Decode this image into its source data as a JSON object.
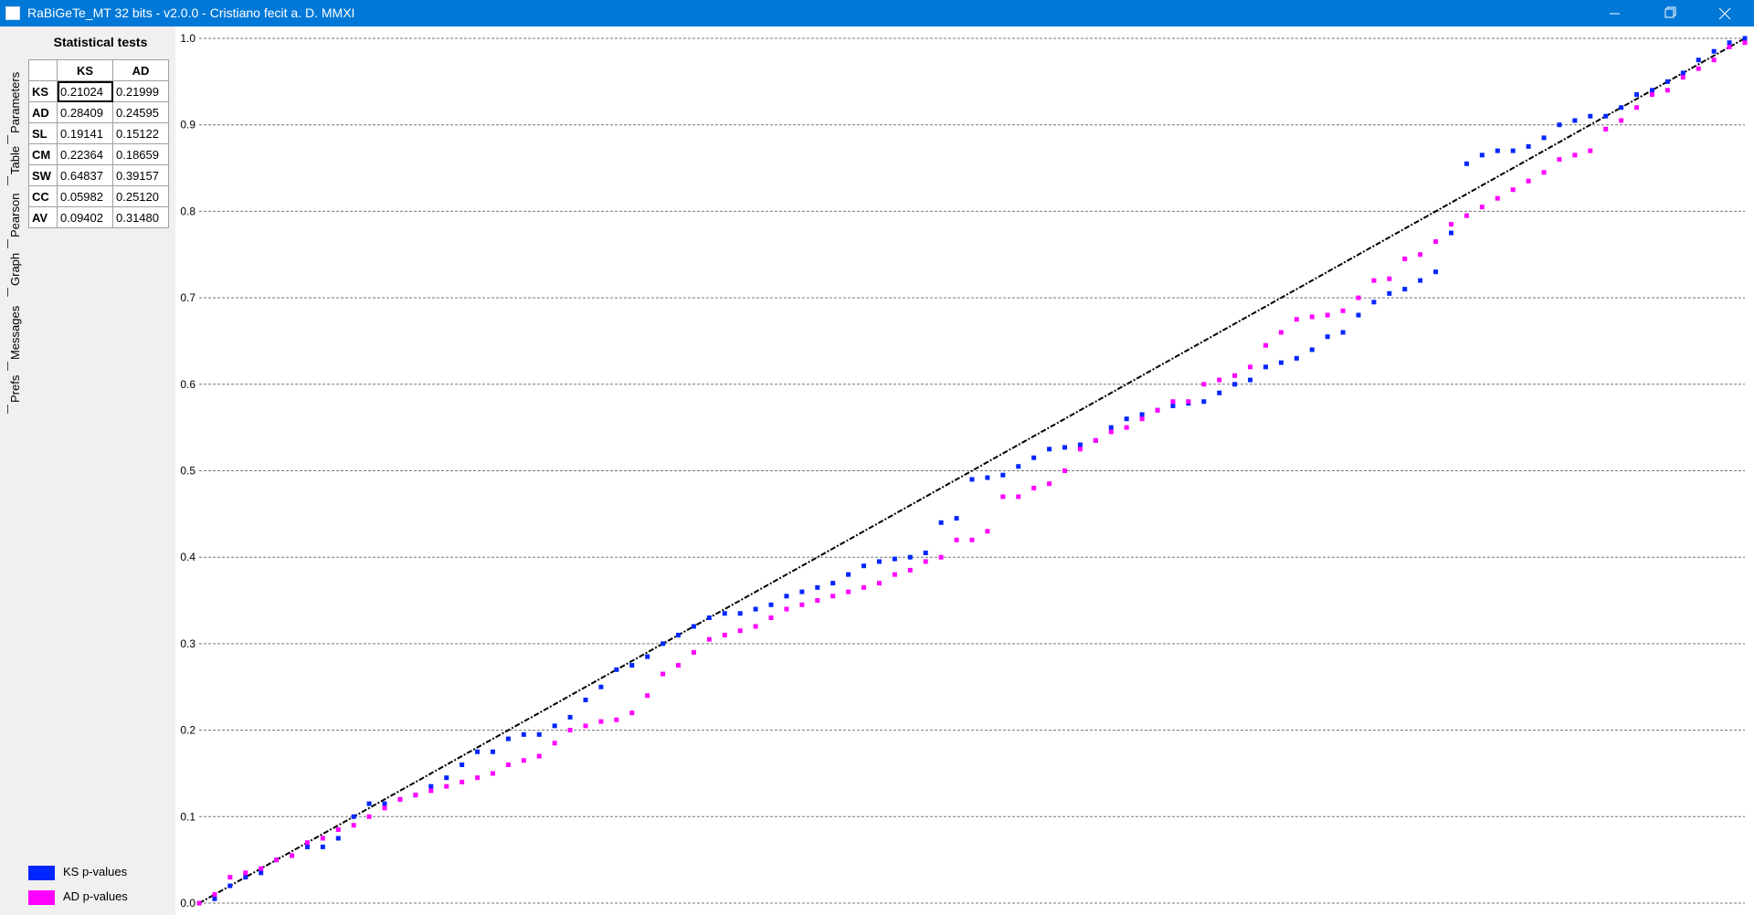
{
  "window": {
    "title": "RaBiGeTe_MT 32 bits - v2.0.0 - Cristiano fecit a. D. MMXI"
  },
  "tabs": [
    "Parameters",
    "Table",
    "Pearson",
    "Graph",
    "Messages",
    "Prefs"
  ],
  "stats": {
    "title": "Statistical tests",
    "columns": [
      "KS",
      "AD"
    ],
    "rows": [
      {
        "label": "KS",
        "values": [
          "0.21024",
          "0.21999"
        ]
      },
      {
        "label": "AD",
        "values": [
          "0.28409",
          "0.24595"
        ]
      },
      {
        "label": "SL",
        "values": [
          "0.19141",
          "0.15122"
        ]
      },
      {
        "label": "CM",
        "values": [
          "0.22364",
          "0.18659"
        ]
      },
      {
        "label": "SW",
        "values": [
          "0.64837",
          "0.39157"
        ]
      },
      {
        "label": "CC",
        "values": [
          "0.05982",
          "0.25120"
        ]
      },
      {
        "label": "AV",
        "values": [
          "0.09402",
          "0.31480"
        ]
      }
    ]
  },
  "chart_data": {
    "type": "scatter",
    "ylim": [
      0,
      1
    ],
    "yticks": [
      {
        "value": 0,
        "label": "0.0"
      },
      {
        "value": 0.1,
        "label": "0.1"
      },
      {
        "value": 0.2,
        "label": "0.2"
      },
      {
        "value": 0.3,
        "label": "0.3"
      },
      {
        "value": 0.4,
        "label": "0.4"
      },
      {
        "value": 0.5,
        "label": "0.5"
      },
      {
        "value": 0.6,
        "label": "0.6"
      },
      {
        "value": 0.7,
        "label": "0.7"
      },
      {
        "value": 0.8,
        "label": "0.8"
      },
      {
        "value": 0.9,
        "label": "0.9"
      },
      {
        "value": 1,
        "label": "1.0"
      }
    ],
    "grid": true,
    "series": [
      {
        "name": "KS p-values",
        "color": "#0026ff",
        "values": [
          0.0,
          0.005,
          0.02,
          0.03,
          0.035,
          0.05,
          0.055,
          0.065,
          0.065,
          0.075,
          0.1,
          0.115,
          0.115,
          0.12,
          0.125,
          0.135,
          0.145,
          0.16,
          0.175,
          0.175,
          0.19,
          0.195,
          0.195,
          0.205,
          0.215,
          0.235,
          0.25,
          0.27,
          0.275,
          0.285,
          0.3,
          0.31,
          0.32,
          0.33,
          0.335,
          0.335,
          0.34,
          0.345,
          0.355,
          0.36,
          0.365,
          0.37,
          0.38,
          0.39,
          0.395,
          0.398,
          0.4,
          0.405,
          0.44,
          0.445,
          0.49,
          0.492,
          0.495,
          0.505,
          0.515,
          0.525,
          0.527,
          0.53,
          0.535,
          0.55,
          0.56,
          0.565,
          0.57,
          0.575,
          0.578,
          0.58,
          0.59,
          0.6,
          0.605,
          0.62,
          0.625,
          0.63,
          0.64,
          0.655,
          0.66,
          0.68,
          0.695,
          0.705,
          0.71,
          0.72,
          0.73,
          0.775,
          0.855,
          0.865,
          0.87,
          0.87,
          0.875,
          0.885,
          0.9,
          0.905,
          0.91,
          0.91,
          0.92,
          0.935,
          0.94,
          0.95,
          0.96,
          0.975,
          0.985,
          0.995,
          1.0
        ]
      },
      {
        "name": "AD p-values",
        "color": "#ff00ff",
        "values": [
          0.0,
          0.01,
          0.03,
          0.035,
          0.04,
          0.05,
          0.055,
          0.07,
          0.075,
          0.085,
          0.09,
          0.1,
          0.11,
          0.12,
          0.125,
          0.13,
          0.135,
          0.14,
          0.145,
          0.15,
          0.16,
          0.165,
          0.17,
          0.185,
          0.2,
          0.205,
          0.21,
          0.212,
          0.22,
          0.24,
          0.265,
          0.275,
          0.29,
          0.305,
          0.31,
          0.315,
          0.32,
          0.33,
          0.34,
          0.345,
          0.35,
          0.355,
          0.36,
          0.365,
          0.37,
          0.38,
          0.385,
          0.395,
          0.4,
          0.42,
          0.42,
          0.43,
          0.47,
          0.47,
          0.48,
          0.485,
          0.5,
          0.525,
          0.535,
          0.545,
          0.55,
          0.56,
          0.57,
          0.58,
          0.58,
          0.6,
          0.605,
          0.61,
          0.62,
          0.645,
          0.66,
          0.675,
          0.678,
          0.68,
          0.685,
          0.7,
          0.72,
          0.722,
          0.745,
          0.75,
          0.765,
          0.785,
          0.795,
          0.805,
          0.815,
          0.825,
          0.835,
          0.845,
          0.86,
          0.865,
          0.87,
          0.895,
          0.905,
          0.92,
          0.935,
          0.94,
          0.955,
          0.965,
          0.975,
          0.99,
          0.995
        ]
      }
    ]
  }
}
